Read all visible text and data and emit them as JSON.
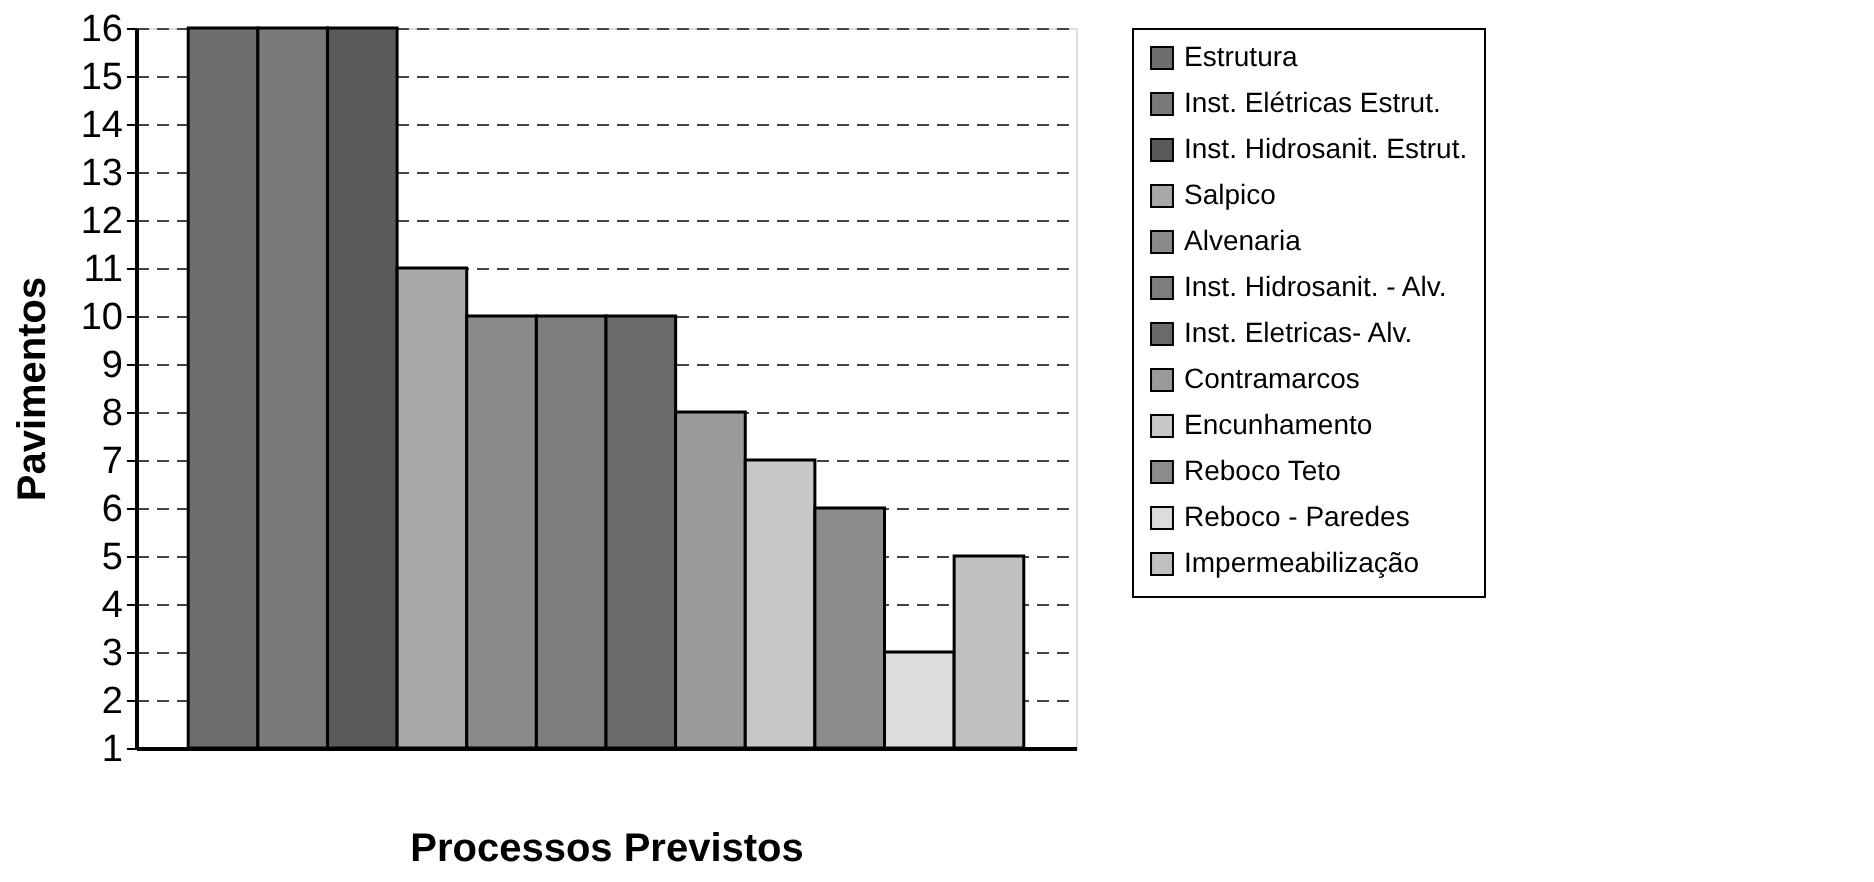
{
  "chart_data": {
    "type": "bar",
    "xlabel": "Processos Previstos",
    "ylabel": "Pavimentos",
    "categories": [
      null
    ],
    "series": [
      {
        "name": "Estrutura",
        "color": "#6e6e6e",
        "values": [
          16
        ]
      },
      {
        "name": "Inst. Elétricas  Estrut.",
        "color": "#7a7a7a",
        "values": [
          16
        ]
      },
      {
        "name": "Inst. Hidrosanit. Estrut.",
        "color": "#5a5a5a",
        "values": [
          16
        ]
      },
      {
        "name": "Salpico",
        "color": "#a8a8a8",
        "values": [
          11
        ]
      },
      {
        "name": "Alvenaria",
        "color": "#8a8a8a",
        "values": [
          10
        ]
      },
      {
        "name": "Inst. Hidrosanit. - Alv.",
        "color": "#7e7e7e",
        "values": [
          10
        ]
      },
      {
        "name": "Inst. Eletricas- Alv.",
        "color": "#6a6a6a",
        "values": [
          10
        ]
      },
      {
        "name": "Contramarcos",
        "color": "#9a9a9a",
        "values": [
          8
        ]
      },
      {
        "name": "Encunhamento",
        "color": "#c8c8c8",
        "values": [
          7
        ]
      },
      {
        "name": "Reboco  Teto",
        "color": "#8c8c8c",
        "values": [
          6
        ]
      },
      {
        "name": "Reboco - Paredes",
        "color": "#dcdcdc",
        "values": [
          3
        ]
      },
      {
        "name": "Impermeabilização",
        "color": "#c0c0c0",
        "values": [
          5
        ]
      }
    ],
    "ylim": [
      1,
      16
    ],
    "yticks": [
      1,
      2,
      3,
      4,
      5,
      6,
      7,
      8,
      9,
      10,
      11,
      12,
      13,
      14,
      15,
      16
    ],
    "grid": "y",
    "legend": "right"
  }
}
